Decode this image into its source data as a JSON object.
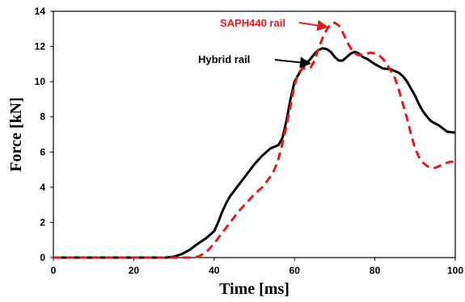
{
  "chart_data": {
    "type": "line",
    "title": "",
    "xlabel": "Time [ms]",
    "ylabel": "Force [kN]",
    "xlim": [
      0,
      100
    ],
    "ylim": [
      0,
      14
    ],
    "x_ticks": [
      0,
      20,
      40,
      60,
      80,
      100
    ],
    "y_ticks": [
      0,
      2,
      4,
      6,
      8,
      10,
      12,
      14
    ],
    "grid": false,
    "series": [
      {
        "name": "Hybrid rail",
        "color": "#000000",
        "line_style": "solid",
        "x": [
          0,
          20,
          28,
          30,
          32,
          34,
          36,
          38,
          40,
          41,
          42,
          43,
          44,
          46,
          48,
          50,
          52,
          54,
          56,
          57,
          58,
          59,
          60,
          62,
          64,
          65,
          66,
          67,
          68,
          69,
          70,
          71,
          72,
          73,
          74,
          75,
          76,
          77,
          78,
          80,
          82,
          84,
          86,
          87,
          88,
          89,
          90,
          91,
          92,
          93,
          94,
          96,
          98,
          100
        ],
        "y": [
          0,
          0,
          0,
          0.05,
          0.2,
          0.45,
          0.8,
          1.1,
          1.5,
          2.0,
          2.6,
          3.1,
          3.5,
          4.1,
          4.7,
          5.3,
          5.8,
          6.2,
          6.4,
          6.8,
          7.8,
          9.0,
          10.0,
          10.8,
          11.3,
          11.6,
          11.8,
          11.9,
          11.85,
          11.7,
          11.4,
          11.2,
          11.2,
          11.4,
          11.6,
          11.7,
          11.6,
          11.4,
          11.3,
          11.0,
          10.75,
          10.7,
          10.5,
          10.3,
          10.0,
          9.6,
          9.2,
          8.7,
          8.3,
          8.0,
          7.75,
          7.5,
          7.15,
          7.1
        ]
      },
      {
        "name": "SAPH440 rail",
        "color": "#e31a1c",
        "line_style": "dashed",
        "x": [
          0,
          30,
          32,
          34,
          36,
          38,
          40,
          42,
          44,
          46,
          48,
          50,
          52,
          54,
          55,
          56,
          57,
          58,
          59,
          60,
          61,
          62,
          63,
          64,
          65,
          66,
          67,
          68,
          69,
          70,
          71,
          72,
          73,
          74,
          75,
          76,
          77,
          78,
          79,
          80,
          81,
          82,
          83,
          84,
          85,
          86,
          87,
          88,
          89,
          90,
          91,
          92,
          93,
          94,
          95,
          96,
          97,
          98,
          99,
          100
        ],
        "y": [
          0,
          0,
          0,
          0,
          0.05,
          0.3,
          0.8,
          1.4,
          2.0,
          2.6,
          3.1,
          3.6,
          4.0,
          4.6,
          5.0,
          5.6,
          6.5,
          7.5,
          8.6,
          9.8,
          10.5,
          10.75,
          10.75,
          10.8,
          11.2,
          11.9,
          12.5,
          12.95,
          13.3,
          13.35,
          13.2,
          12.8,
          12.3,
          11.9,
          11.6,
          11.5,
          11.55,
          11.6,
          11.65,
          11.6,
          11.5,
          11.3,
          11.0,
          10.6,
          10.2,
          9.5,
          8.7,
          7.9,
          7.0,
          6.2,
          5.7,
          5.4,
          5.2,
          5.1,
          5.1,
          5.2,
          5.3,
          5.4,
          5.45,
          5.45
        ]
      }
    ],
    "annotations": [
      {
        "text": "SAPH440 rail",
        "color": "#e31a1c",
        "arrow_to": [
          69,
          13.2
        ]
      },
      {
        "text": "Hybrid rail",
        "color": "#000000",
        "arrow_to": [
          63.5,
          11.4
        ]
      }
    ]
  }
}
